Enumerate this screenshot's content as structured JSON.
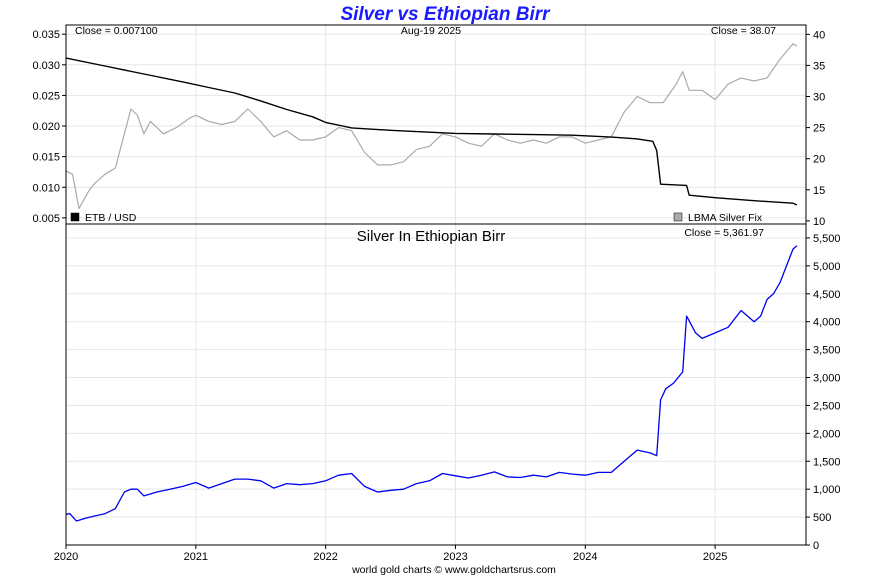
{
  "chart_title": "Silver vs Ethiopian Birr",
  "footer": "world gold charts © www.goldchartsrus.com",
  "colors": {
    "title": "#1a1aff",
    "birr": "#000000",
    "silver_usd": "#aaaaaa",
    "silver_birr": "#0000ee",
    "grid": "#dfe8ee"
  },
  "chart_data": [
    {
      "type": "line",
      "annotations": {
        "left_close": "Close = 0.007100",
        "date": "Aug-19  2025",
        "right_close": "Close = 38.07"
      },
      "legend": [
        {
          "label": "ETB / USD",
          "color": "#000000",
          "placement": "bottom-left"
        },
        {
          "label": "LBMA Silver Fix",
          "color": "#aaaaaa",
          "placement": "bottom-right"
        }
      ],
      "x_ticks": [
        "2020",
        "2021",
        "2022",
        "2023",
        "2024",
        "2025"
      ],
      "xlim": [
        2020.0,
        2025.7
      ],
      "y_left": {
        "ticks": [
          "0.005",
          "0.010",
          "0.015",
          "0.020",
          "0.025",
          "0.030",
          "0.035"
        ],
        "ylim": [
          0.004,
          0.0365
        ]
      },
      "y_right": {
        "ticks": [
          "10",
          "15",
          "20",
          "25",
          "30",
          "35",
          "40"
        ],
        "ylim": [
          9.5,
          41.5
        ]
      },
      "grid": true,
      "series": [
        {
          "name": "ETB / USD",
          "axis": "left",
          "x": [
            2020.0,
            2020.3,
            2020.6,
            2020.9,
            2021.1,
            2021.3,
            2021.5,
            2021.7,
            2021.9,
            2022.0,
            2022.2,
            2022.5,
            2022.8,
            2023.0,
            2023.3,
            2023.6,
            2023.9,
            2024.2,
            2024.4,
            2024.52,
            2024.55,
            2024.58,
            2024.78,
            2024.8,
            2025.0,
            2025.3,
            2025.6,
            2025.63
          ],
          "y": [
            0.0311,
            0.0298,
            0.0285,
            0.0272,
            0.0263,
            0.0254,
            0.0241,
            0.0227,
            0.0215,
            0.0206,
            0.0197,
            0.0193,
            0.019,
            0.0188,
            0.0187,
            0.0186,
            0.0185,
            0.0182,
            0.0179,
            0.0175,
            0.016,
            0.0105,
            0.0103,
            0.0087,
            0.0083,
            0.0078,
            0.0074,
            0.0071
          ]
        },
        {
          "name": "LBMA Silver Fix",
          "axis": "right",
          "x": [
            2020.0,
            2020.05,
            2020.1,
            2020.18,
            2020.22,
            2020.3,
            2020.38,
            2020.45,
            2020.5,
            2020.55,
            2020.6,
            2020.65,
            2020.75,
            2020.85,
            2020.95,
            2021.0,
            2021.1,
            2021.2,
            2021.3,
            2021.4,
            2021.5,
            2021.6,
            2021.7,
            2021.8,
            2021.9,
            2022.0,
            2022.1,
            2022.2,
            2022.3,
            2022.4,
            2022.5,
            2022.6,
            2022.7,
            2022.8,
            2022.9,
            2023.0,
            2023.1,
            2023.2,
            2023.3,
            2023.4,
            2023.5,
            2023.6,
            2023.7,
            2023.8,
            2023.9,
            2024.0,
            2024.1,
            2024.2,
            2024.3,
            2024.4,
            2024.5,
            2024.6,
            2024.7,
            2024.75,
            2024.8,
            2024.9,
            2025.0,
            2025.1,
            2025.2,
            2025.3,
            2025.4,
            2025.5,
            2025.6,
            2025.63
          ],
          "y": [
            18.0,
            17.5,
            12.0,
            15.0,
            16.0,
            17.5,
            18.5,
            24.0,
            28.0,
            27.0,
            24.0,
            26.0,
            24.0,
            25.0,
            26.5,
            27.0,
            26.0,
            25.5,
            26.0,
            28.0,
            26.0,
            23.5,
            24.5,
            23.0,
            23.0,
            23.5,
            25.0,
            24.5,
            21.0,
            19.0,
            19.0,
            19.5,
            21.5,
            22.0,
            24.0,
            23.5,
            22.5,
            22.0,
            24.0,
            23.0,
            22.5,
            23.0,
            22.5,
            23.5,
            23.5,
            22.5,
            23.0,
            23.5,
            27.5,
            30.0,
            29.0,
            29.0,
            32.0,
            34.0,
            31.0,
            31.0,
            29.5,
            32.0,
            33.0,
            32.5,
            33.0,
            36.0,
            38.5,
            38.07
          ]
        }
      ]
    },
    {
      "type": "line",
      "title": "Silver In Ethiopian Birr",
      "annotations": {
        "close": "Close = 5,361.97"
      },
      "x_ticks": [
        "2020",
        "2021",
        "2022",
        "2023",
        "2024",
        "2025"
      ],
      "xlim": [
        2020.0,
        2025.7
      ],
      "y_right": {
        "ticks": [
          "0",
          "500",
          "1,000",
          "1,500",
          "2,000",
          "2,500",
          "3,000",
          "3,500",
          "4,000",
          "4,500",
          "5,000",
          "5,500"
        ],
        "ylim": [
          0,
          5750
        ]
      },
      "grid": true,
      "series": [
        {
          "name": "Silver In Ethiopian Birr",
          "axis": "right",
          "x": [
            2020.0,
            2020.03,
            2020.08,
            2020.15,
            2020.22,
            2020.3,
            2020.38,
            2020.45,
            2020.5,
            2020.55,
            2020.6,
            2020.7,
            2020.8,
            2020.9,
            2021.0,
            2021.1,
            2021.2,
            2021.3,
            2021.4,
            2021.5,
            2021.6,
            2021.7,
            2021.8,
            2021.9,
            2022.0,
            2022.1,
            2022.2,
            2022.3,
            2022.4,
            2022.5,
            2022.6,
            2022.7,
            2022.8,
            2022.9,
            2023.0,
            2023.1,
            2023.2,
            2023.3,
            2023.4,
            2023.5,
            2023.6,
            2023.7,
            2023.8,
            2023.9,
            2024.0,
            2024.1,
            2024.2,
            2024.3,
            2024.4,
            2024.5,
            2024.55,
            2024.58,
            2024.62,
            2024.68,
            2024.75,
            2024.78,
            2024.85,
            2024.9,
            2025.0,
            2025.1,
            2025.2,
            2025.3,
            2025.35,
            2025.4,
            2025.45,
            2025.5,
            2025.55,
            2025.6,
            2025.63
          ],
          "y": [
            550,
            560,
            430,
            480,
            520,
            560,
            650,
            950,
            1000,
            1000,
            880,
            950,
            1000,
            1050,
            1120,
            1020,
            1100,
            1180,
            1180,
            1150,
            1020,
            1100,
            1080,
            1100,
            1150,
            1250,
            1280,
            1050,
            950,
            980,
            1000,
            1100,
            1150,
            1280,
            1240,
            1200,
            1250,
            1310,
            1220,
            1210,
            1250,
            1220,
            1300,
            1270,
            1250,
            1300,
            1300,
            1500,
            1700,
            1650,
            1600,
            2600,
            2800,
            2900,
            3100,
            4100,
            3800,
            3700,
            3800,
            3900,
            4200,
            4000,
            4100,
            4400,
            4500,
            4700,
            5000,
            5300,
            5361.97
          ]
        }
      ]
    }
  ]
}
